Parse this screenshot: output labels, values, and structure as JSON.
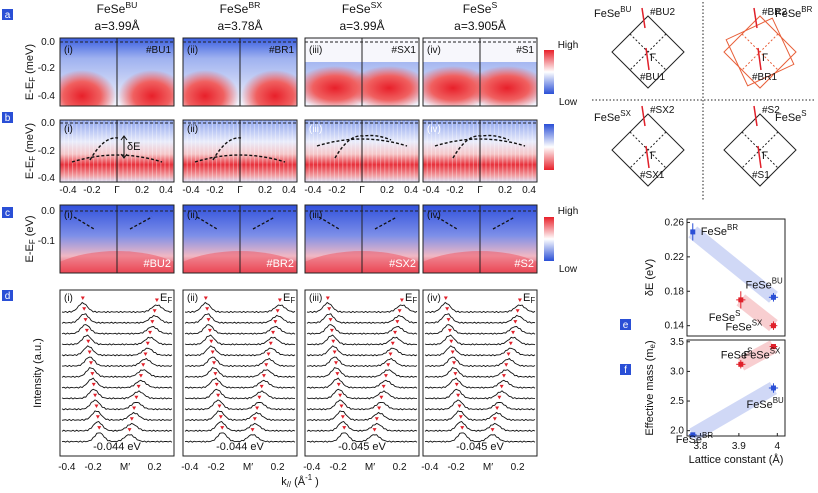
{
  "panel_letters": [
    "a",
    "b",
    "c",
    "d",
    "e",
    "f"
  ],
  "columns": [
    {
      "label": "FeSe",
      "sup": "BU",
      "lattice": "a=3.99Å"
    },
    {
      "label": "FeSe",
      "sup": "BR",
      "lattice": "a=3.78Å"
    },
    {
      "label": "FeSe",
      "sup": "SX",
      "lattice": "a=3.99Å"
    },
    {
      "label": "FeSe",
      "sup": "S",
      "lattice": "a=3.905Å"
    }
  ],
  "row_a": {
    "ylabel": {
      "main": "E-E",
      "sub": "F",
      "unit": "(meV)"
    },
    "yticks": [
      "0.0",
      "-0.2",
      "-0.4"
    ],
    "roman": [
      "(i)",
      "(ii)",
      "(iii)",
      "(iv)"
    ],
    "tags": [
      "#BU1",
      "#BR1",
      "#SX1",
      "#S1"
    ]
  },
  "row_b": {
    "ylabel": {
      "main": "E-E",
      "sub": "F",
      "unit": "(meV)"
    },
    "yticks": [
      "0.0",
      "-0.2",
      "-0.4"
    ],
    "roman": [
      "(i)",
      "(ii)",
      "(iii)",
      "(iv)"
    ],
    "delta": "δE",
    "xticks": [
      "-0.4",
      "-0.2",
      "Γ",
      "0.2",
      "0.4"
    ]
  },
  "row_c": {
    "ylabel": {
      "main": "E-E",
      "sub": "F",
      "unit": "(eV)"
    },
    "yticks": [
      "0.0",
      "-0.1"
    ],
    "roman": [
      "(i)",
      "(ii)",
      "(iii)",
      "(iv)"
    ],
    "tags": [
      "#BU2",
      "#BR2",
      "#SX2",
      "#S2"
    ]
  },
  "row_d": {
    "ylabel": "Intensity (a.u.)",
    "roman": [
      "(i)",
      "(ii)",
      "(iii)",
      "(iv)"
    ],
    "ef": "E",
    "ef_sub": "F",
    "energies": [
      "-0.044 eV",
      "-0.044 eV",
      "-0.045 eV",
      "-0.045 eV"
    ],
    "xticks": [
      "-0.4",
      "-0.2",
      "M′",
      "0.2"
    ],
    "xlabel": {
      "main": "k",
      "sub": "//",
      "unit": "(Å",
      "sup": "-1",
      "end": ")"
    }
  },
  "colorbar": {
    "high": "High",
    "low": "Low"
  },
  "colorbar_c": {
    "high": "High",
    "low": "Low"
  },
  "bz": [
    {
      "label": "FeSe",
      "sup": "BU",
      "cut_top": "#BU2",
      "cut_bottom": "#BU1",
      "gamma": "Γ"
    },
    {
      "label": "FeSe",
      "sup": "BR",
      "cut_top": "#BR2",
      "cut_bottom": "#BR1",
      "gamma": "Γ"
    },
    {
      "label": "FeSe",
      "sup": "SX",
      "cut_top": "#SX2",
      "cut_bottom": "#SX1",
      "gamma": "Γ"
    },
    {
      "label": "FeSe",
      "sup": "S",
      "cut_top": "#S2",
      "cut_bottom": "#S1",
      "gamma": "Γ"
    }
  ],
  "chart_data": [
    {
      "type": "scatter",
      "ylabel": "δE (eV)",
      "xlim": [
        3.765,
        4.02
      ],
      "ylim": [
        0.128,
        0.264
      ],
      "yticks": [
        0.14,
        0.18,
        0.22,
        0.26
      ],
      "series": [
        {
          "name": "FeSe",
          "name_sup": "BR",
          "color": "#2a4fd6",
          "x": [
            3.78
          ],
          "values": [
            0.249
          ],
          "xerr": [
            0.005
          ],
          "yerr": [
            0.01
          ]
        },
        {
          "name": "FeSe",
          "name_sup": "BU",
          "color": "#2a4fd6",
          "x": [
            3.99
          ],
          "values": [
            0.173
          ],
          "xerr": [
            0.012
          ],
          "yerr": [
            0.005
          ]
        },
        {
          "name": "FeSe",
          "name_sup": "S",
          "color": "#e0202a",
          "x": [
            3.905
          ],
          "values": [
            0.17
          ],
          "xerr": [
            0.012
          ],
          "yerr": [
            0.01
          ]
        },
        {
          "name": "FeSe",
          "name_sup": "SX",
          "color": "#e0202a",
          "x": [
            3.99
          ],
          "values": [
            0.14
          ],
          "xerr": [
            0.01
          ],
          "yerr": [
            0.005
          ]
        }
      ]
    },
    {
      "type": "scatter",
      "ylabel": {
        "main": "Effective mass (m",
        "sub": "e",
        "end": ")"
      },
      "xlabel": "Lattice constant (Å)",
      "xlim": [
        3.765,
        4.02
      ],
      "ylim": [
        1.91,
        3.53
      ],
      "xticks": [
        3.8,
        3.9,
        4
      ],
      "yticks": [
        {
          "value": 2,
          "label": "2.0"
        },
        2.5,
        {
          "value": 3,
          "label": "3.0"
        },
        3.5
      ],
      "series": [
        {
          "name": "FeSe",
          "name_sup": "BR",
          "color": "#2a4fd6",
          "x": [
            3.78
          ],
          "values": [
            1.93
          ],
          "xerr": [
            0.01
          ],
          "yerr": [
            0.03
          ]
        },
        {
          "name": "FeSe",
          "name_sup": "BU",
          "color": "#2a4fd6",
          "x": [
            3.99
          ],
          "values": [
            2.72
          ],
          "xerr": [
            0.012
          ],
          "yerr": [
            0.08
          ]
        },
        {
          "name": "FeSe",
          "name_sup": "S",
          "color": "#e0202a",
          "x": [
            3.905
          ],
          "values": [
            3.12
          ],
          "xerr": [
            0.012
          ],
          "yerr": [
            0.07
          ]
        },
        {
          "name": "FeSe",
          "name_sup": "SX",
          "color": "#e0202a",
          "x": [
            3.99
          ],
          "values": [
            3.42
          ],
          "xerr": [
            0.01
          ],
          "yerr": [
            0.03
          ]
        }
      ]
    }
  ]
}
